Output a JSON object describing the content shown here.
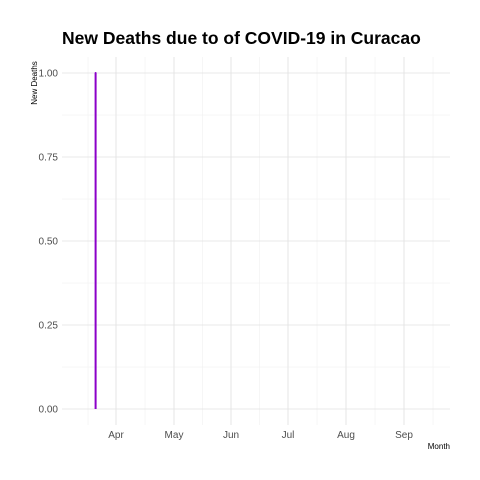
{
  "chart_data": {
    "type": "line",
    "title": "New Deaths due to of COVID-19 in Curacao",
    "xlabel": "Month",
    "ylabel": "New Deaths",
    "x_ticks": [
      "Apr",
      "May",
      "Jun",
      "Jul",
      "Aug",
      "Sep"
    ],
    "y_ticks": [
      "0.00",
      "0.25",
      "0.50",
      "0.75",
      "1.00"
    ],
    "ylim": [
      0,
      1
    ],
    "xlim": [
      "2020-03-06",
      "2020-09-30"
    ],
    "grid": true,
    "series": [
      {
        "color": "#8B00C9",
        "points": [
          {
            "x": "2020-03-24",
            "y": 0
          },
          {
            "x": "2020-03-24",
            "y": 1
          },
          {
            "x": "2020-03-24",
            "y": 0
          }
        ]
      }
    ]
  }
}
